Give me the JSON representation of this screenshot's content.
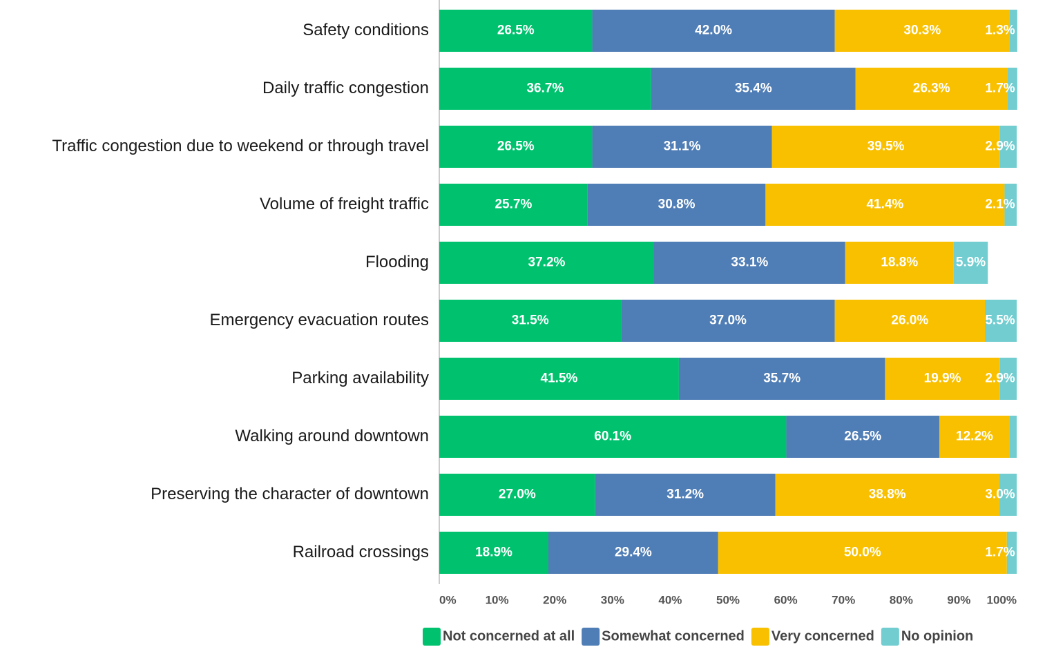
{
  "chart_data": {
    "type": "stacked-barh",
    "categories": [
      "Safety conditions",
      "Daily traffic congestion",
      "Traffic congestion due to weekend or through travel",
      "Volume of freight traffic",
      "Flooding",
      "Emergency evacuation routes",
      "Parking availability",
      "Walking around downtown",
      "Preserving the character of downtown",
      "Railroad crossings"
    ],
    "series": [
      {
        "name": "Not concerned at all",
        "color": "#00c26e",
        "values": [
          26.5,
          36.7,
          26.5,
          25.7,
          37.2,
          31.5,
          41.5,
          60.1,
          27.0,
          18.9
        ],
        "value_labels": [
          "26.5%",
          "36.7%",
          "26.5%",
          "25.7%",
          "37.2%",
          "31.5%",
          "41.5%",
          "60.1%",
          "27.0%",
          "18.9%"
        ]
      },
      {
        "name": "Somewhat concerned",
        "color": "#4f7db5",
        "values": [
          42.0,
          35.4,
          31.1,
          30.8,
          33.1,
          37.0,
          35.7,
          26.5,
          31.2,
          29.4
        ],
        "value_labels": [
          "42.0%",
          "35.4%",
          "31.1%",
          "30.8%",
          "33.1%",
          "37.0%",
          "35.7%",
          "26.5%",
          "31.2%",
          "29.4%"
        ]
      },
      {
        "name": "Very concerned",
        "color": "#f9c000",
        "values": [
          30.3,
          26.3,
          39.5,
          41.4,
          18.8,
          26.0,
          19.9,
          12.2,
          38.8,
          50.0
        ],
        "value_labels": [
          "30.3%",
          "26.3%",
          "39.5%",
          "41.4%",
          "18.8%",
          "26.0%",
          "19.9%",
          "12.2%",
          "38.8%",
          "50.0%"
        ]
      },
      {
        "name": "No opinion",
        "color": "#72cdd0",
        "values": [
          1.3,
          1.7,
          2.9,
          2.1,
          5.9,
          5.5,
          2.9,
          1.2,
          3.0,
          1.7
        ],
        "value_labels": [
          "1.3%",
          "1.7%",
          "2.9%",
          "2.1%",
          "5.9%",
          "5.5%",
          "2.9%",
          null,
          "3.0%",
          "1.7%"
        ]
      }
    ],
    "xlim": [
      0,
      100
    ],
    "xticks": [
      {
        "value": 0,
        "label": "0%"
      },
      {
        "value": 10,
        "label": "10%"
      },
      {
        "value": 20,
        "label": "20%"
      },
      {
        "value": 30,
        "label": "30%"
      },
      {
        "value": 40,
        "label": "40%"
      },
      {
        "value": 50,
        "label": "50%"
      },
      {
        "value": 60,
        "label": "60%"
      },
      {
        "value": 70,
        "label": "70%"
      },
      {
        "value": 80,
        "label": "80%"
      },
      {
        "value": 90,
        "label": "90%"
      },
      {
        "value": 100,
        "label": "100%"
      }
    ],
    "grid": false,
    "legend": "bottom"
  }
}
